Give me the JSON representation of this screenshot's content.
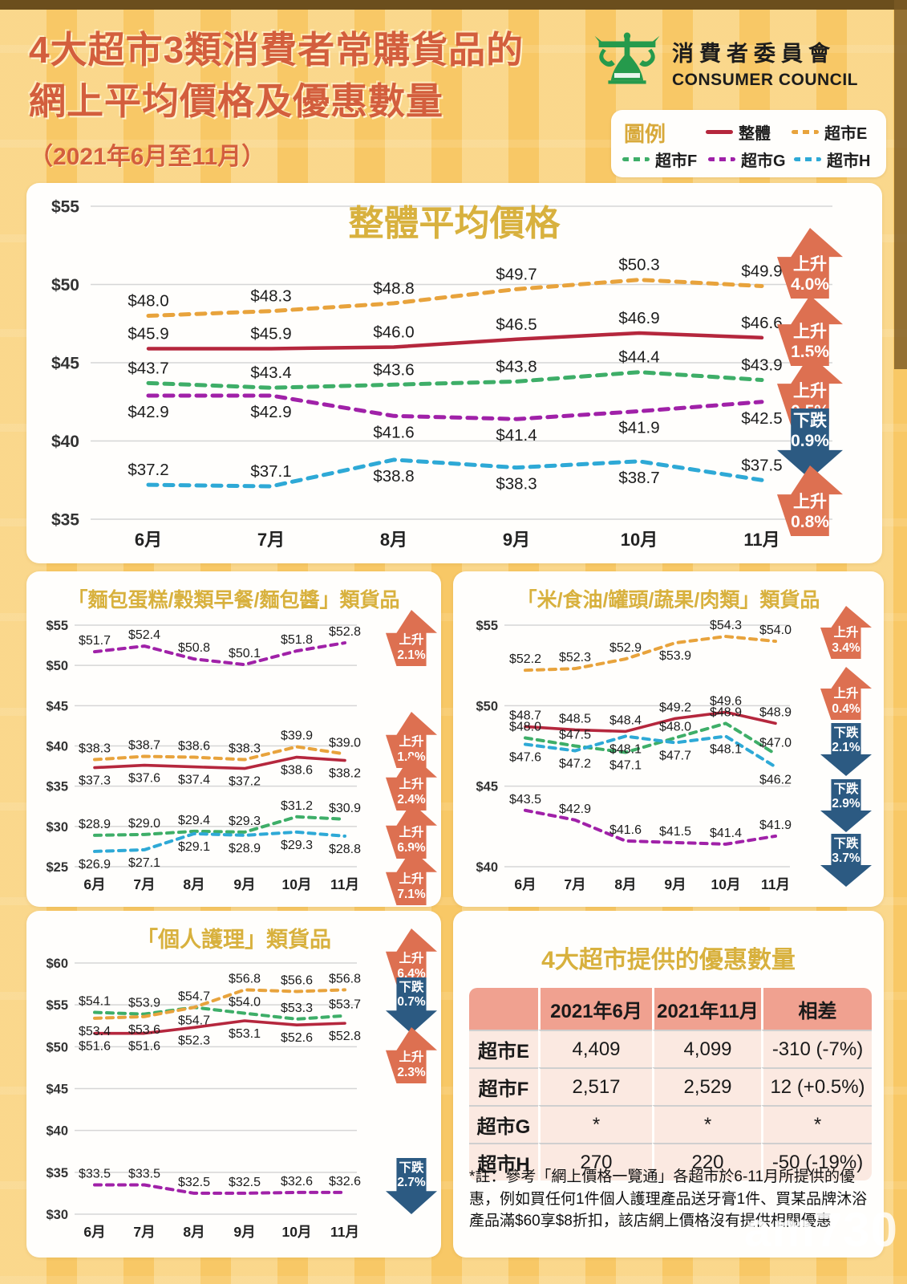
{
  "header": {
    "title_line1": "4大超市3類消費者常購貨品的",
    "title_line2": "網上平均價格及優惠數量",
    "subtitle": "（2021年6月至11月）",
    "logo": {
      "zh": "消費者委員會",
      "en": "CONSUMER COUNCIL"
    },
    "legend": {
      "title": "圖例",
      "items": [
        {
          "name": "整體"
        },
        {
          "name": "超市E"
        },
        {
          "name": "超市F"
        },
        {
          "name": "超市G"
        },
        {
          "name": "超市H"
        }
      ]
    }
  },
  "colors": {
    "整體": "#b5273d",
    "超市E": "#e8a33c",
    "超市F": "#3eae68",
    "超市G": "#a021a8",
    "超市H": "#2ea9d6",
    "title_gold": "#d8b13e",
    "header_red": "#d35e3d",
    "arrow_up": "#dd7051",
    "arrow_down": "#2c5a82",
    "table_header_bg": "#f0a190",
    "table_row_bg": "#fbe9e1",
    "logo_green": "#259a4c"
  },
  "chart_data": [
    {
      "id": "overall",
      "type": "line",
      "title": "整體平均價格",
      "x_categories": [
        "6月",
        "7月",
        "8月",
        "9月",
        "10月",
        "11月"
      ],
      "ylim": [
        35,
        55
      ],
      "ytick_step": 5,
      "ytick_prefix": "$",
      "series": [
        {
          "name": "超市E",
          "values": [
            "48.0",
            "48.3",
            "48.8",
            "49.7",
            "50.3",
            "49.9"
          ]
        },
        {
          "name": "整體",
          "values": [
            "45.9",
            "45.9",
            "46.0",
            "46.5",
            "46.9",
            "46.6"
          ]
        },
        {
          "name": "超市F",
          "values": [
            "43.7",
            "43.4",
            "43.6",
            "43.8",
            "44.4",
            "43.9"
          ]
        },
        {
          "name": "超市G",
          "values": [
            "42.9",
            "42.9",
            "41.6",
            "41.4",
            "41.9",
            "42.5"
          ]
        },
        {
          "name": "超市H",
          "values": [
            "37.2",
            "37.1",
            "38.8",
            "38.3",
            "38.7",
            "37.5"
          ]
        }
      ],
      "changes": [
        {
          "series": "超市E",
          "direction": "up",
          "label": "上升",
          "pct": "4.0%"
        },
        {
          "series": "整體",
          "direction": "up",
          "label": "上升",
          "pct": "1.5%"
        },
        {
          "series": "超市F",
          "direction": "up",
          "label": "上升",
          "pct": "0.5%"
        },
        {
          "series": "超市G",
          "direction": "down",
          "label": "下跌",
          "pct": "0.9%"
        },
        {
          "series": "超市H",
          "direction": "up",
          "label": "上升",
          "pct": "0.8%"
        }
      ]
    },
    {
      "id": "bread",
      "type": "line",
      "title": "「麵包蛋糕/穀類早餐/麵包醬」類貨品",
      "x_categories": [
        "6月",
        "7月",
        "8月",
        "9月",
        "10月",
        "11月"
      ],
      "ylim": [
        25,
        55
      ],
      "ytick_step": 5,
      "ytick_prefix": "$",
      "series": [
        {
          "name": "超市G",
          "values": [
            "51.7",
            "52.4",
            "50.8",
            "50.1",
            "51.8",
            "52.8"
          ]
        },
        {
          "name": "超市E",
          "values": [
            "38.3",
            "38.7",
            "38.6",
            "38.3",
            "39.9",
            "39.0"
          ]
        },
        {
          "name": "整體",
          "values": [
            "37.3",
            "37.6",
            "37.4",
            "37.2",
            "38.6",
            "38.2"
          ]
        },
        {
          "name": "超市F",
          "values": [
            "28.9",
            "29.0",
            "29.4",
            "29.3",
            "31.2",
            "30.9"
          ]
        },
        {
          "name": "超市H",
          "values": [
            "26.9",
            "27.1",
            "29.1",
            "28.9",
            "29.3",
            "28.8"
          ]
        }
      ],
      "changes": [
        {
          "series": "超市G",
          "direction": "up",
          "label": "上升",
          "pct": "2.1%"
        },
        {
          "series": "超市E",
          "direction": "up",
          "label": "上升",
          "pct": "1.8%"
        },
        {
          "series": "整體",
          "direction": "up",
          "label": "上升",
          "pct": "2.4%"
        },
        {
          "series": "超市F",
          "direction": "up",
          "label": "上升",
          "pct": "6.9%"
        },
        {
          "series": "超市H",
          "direction": "up",
          "label": "上升",
          "pct": "7.1%"
        }
      ]
    },
    {
      "id": "rice",
      "type": "line",
      "title": "「米/食油/罐頭/蔬果/肉類」類貨品",
      "x_categories": [
        "6月",
        "7月",
        "8月",
        "9月",
        "10月",
        "11月"
      ],
      "ylim": [
        40,
        55
      ],
      "ytick_step": 5,
      "ytick_prefix": "$",
      "series": [
        {
          "name": "超市E",
          "values": [
            "52.2",
            "52.3",
            "52.9",
            "53.9",
            "54.3",
            "54.0"
          ]
        },
        {
          "name": "整體",
          "values": [
            "48.7",
            "48.5",
            "48.4",
            "49.2",
            "49.6",
            "48.9"
          ]
        },
        {
          "name": "超市F",
          "values": [
            "48.0",
            "47.5",
            "47.1",
            "48.0",
            "48.9",
            "47.0"
          ]
        },
        {
          "name": "超市H",
          "values": [
            "47.6",
            "47.2",
            "48.1",
            "47.7",
            "48.1",
            "46.2"
          ]
        },
        {
          "name": "超市G",
          "values": [
            "43.5",
            "42.9",
            "41.6",
            "41.5",
            "41.4",
            "41.9"
          ]
        }
      ],
      "changes": [
        {
          "series": "超市E",
          "direction": "up",
          "label": "上升",
          "pct": "3.4%"
        },
        {
          "series": "整體",
          "direction": "up",
          "label": "上升",
          "pct": "0.4%"
        },
        {
          "series": "超市F",
          "direction": "down",
          "label": "下跌",
          "pct": "2.1%"
        },
        {
          "series": "超市H",
          "direction": "down",
          "label": "下跌",
          "pct": "2.9%"
        },
        {
          "series": "超市G",
          "direction": "down",
          "label": "下跌",
          "pct": "3.7%"
        }
      ]
    },
    {
      "id": "personal",
      "type": "line",
      "title": "「個人護理」類貨品",
      "x_categories": [
        "6月",
        "7月",
        "8月",
        "9月",
        "10月",
        "11月"
      ],
      "ylim": [
        30,
        60
      ],
      "ytick_step": 5,
      "ytick_prefix": "$",
      "series": [
        {
          "name": "超市F",
          "values": [
            "54.1",
            "53.9",
            "54.7",
            "54.0",
            "53.3",
            "53.7"
          ]
        },
        {
          "name": "超市E",
          "values": [
            "53.4",
            "53.6",
            "54.7",
            "56.8",
            "56.6",
            "56.8"
          ]
        },
        {
          "name": "整體",
          "values": [
            "51.6",
            "51.6",
            "52.3",
            "53.1",
            "52.6",
            "52.8"
          ]
        },
        {
          "name": "超市G",
          "values": [
            "33.5",
            "33.5",
            "32.5",
            "32.5",
            "32.6",
            "32.6"
          ]
        }
      ],
      "changes": [
        {
          "series": "超市E",
          "direction": "up",
          "label": "上升",
          "pct": "6.4%"
        },
        {
          "series": "超市F",
          "direction": "down",
          "label": "下跌",
          "pct": "0.7%"
        },
        {
          "series": "整體",
          "direction": "up",
          "label": "上升",
          "pct": "2.3%"
        },
        {
          "series": "超市G",
          "direction": "down",
          "label": "下跌",
          "pct": "2.7%"
        }
      ]
    }
  ],
  "discount_table": {
    "title": "4大超市提供的優惠數量",
    "headers": [
      "",
      "2021年6月",
      "2021年11月",
      "相差"
    ],
    "rows": [
      {
        "label": "超市E",
        "jun2021": "4,409",
        "nov2021": "4,099",
        "diff": "-310 (-7%)"
      },
      {
        "label": "超市F",
        "jun2021": "2,517",
        "nov2021": "2,529",
        "diff": "12 (+0.5%)"
      },
      {
        "label": "超市G",
        "jun2021": "*",
        "nov2021": "*",
        "diff": "*"
      },
      {
        "label": "超市H",
        "jun2021": "270",
        "nov2021": "220",
        "diff": "-50 (-19%)"
      }
    ],
    "footnote": "*註：參考「網上價格一覽通」各超市於6-11月所提供的優惠，例如買任何1件個人護理產品送牙膏1件、買某品牌沐浴產品滿$60享$8折扣，該店網上價格沒有提供相關優惠"
  },
  "watermark": "am730"
}
